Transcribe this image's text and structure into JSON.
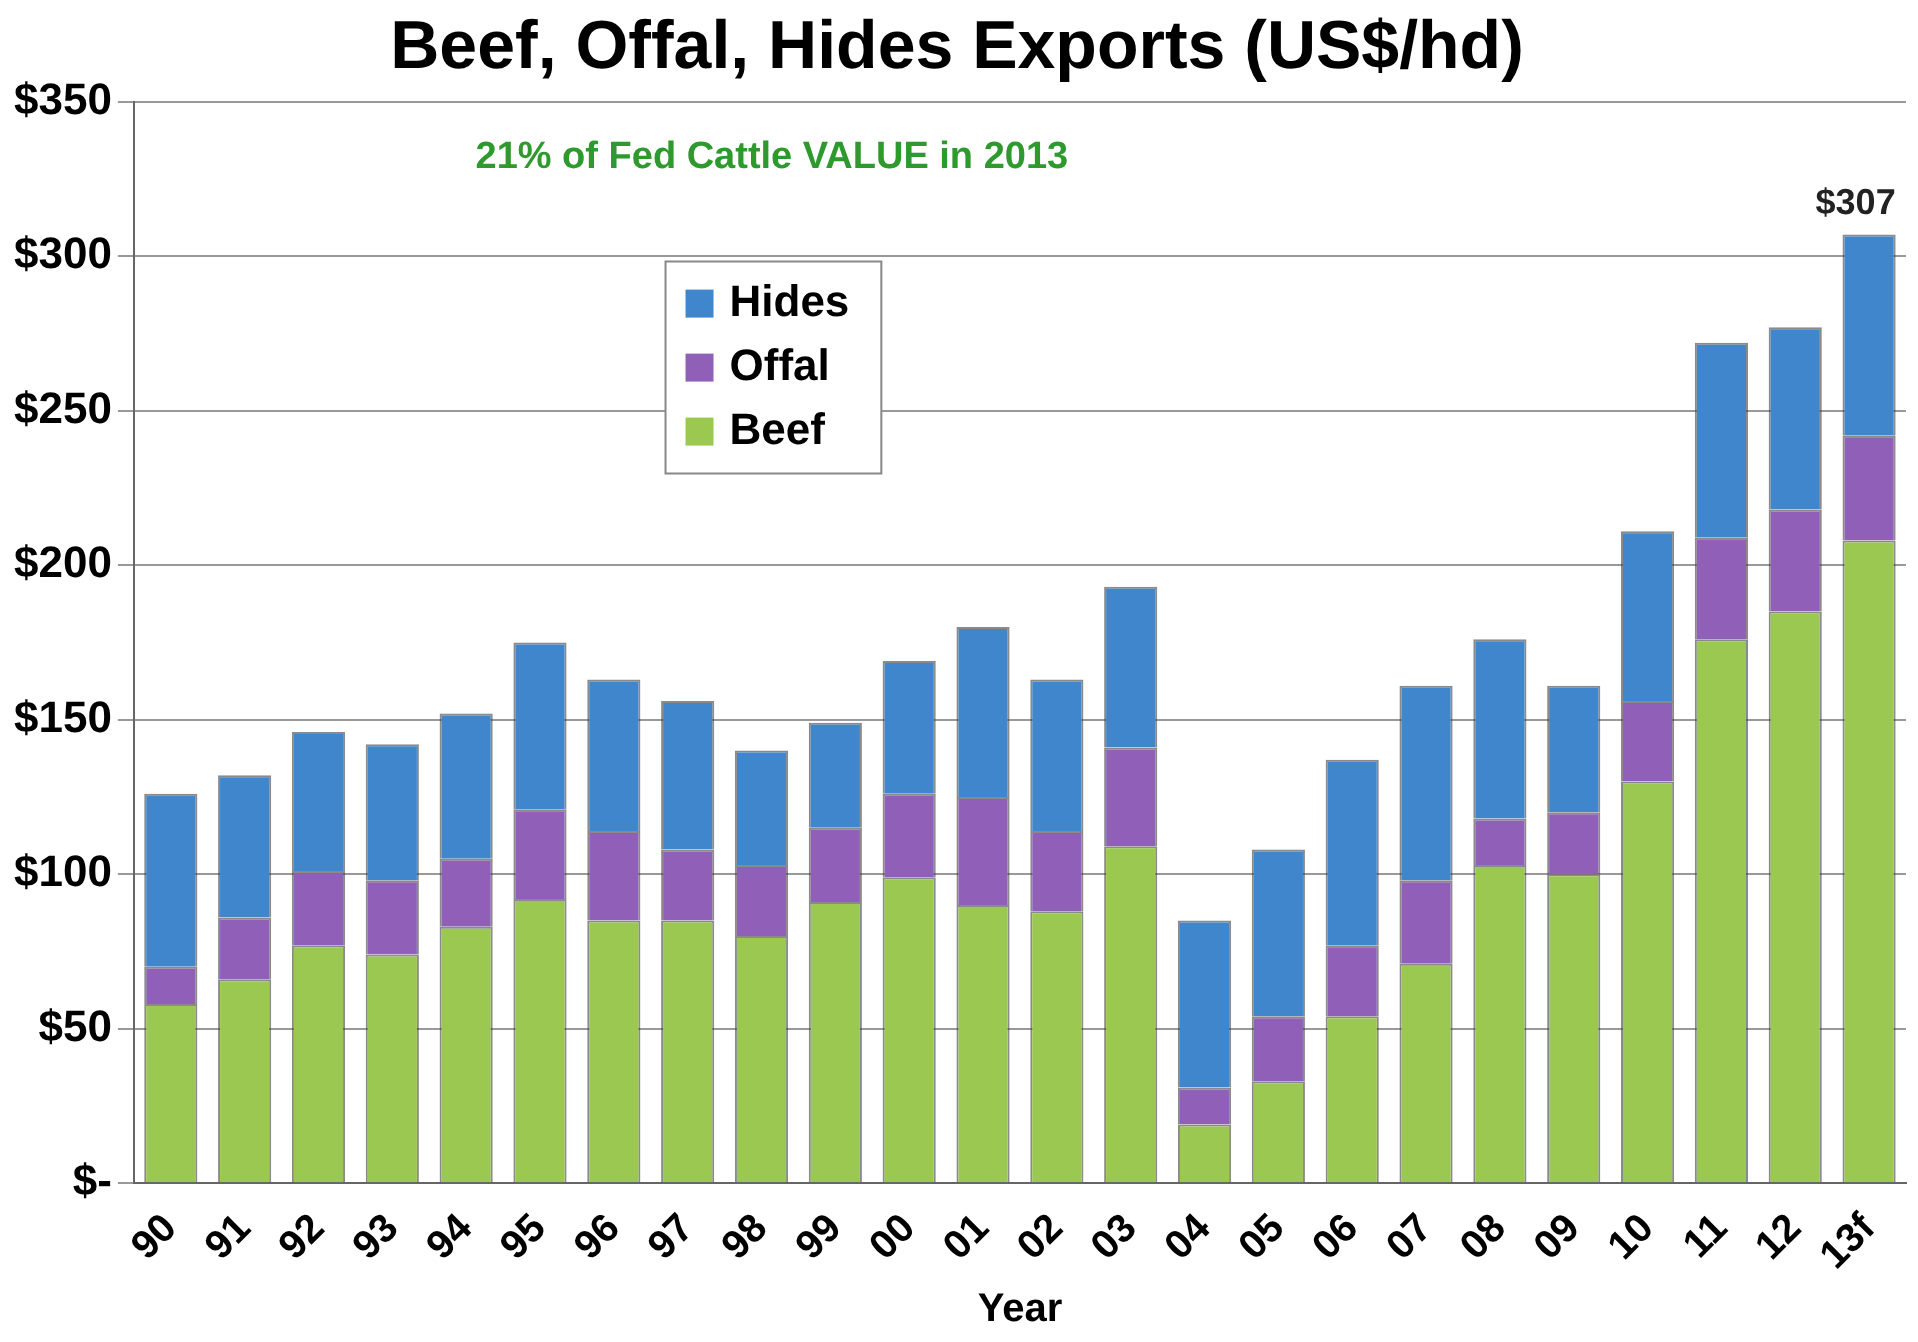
{
  "chart_data": {
    "type": "bar",
    "title": "Beef, Offal, Hides Exports (US$/hd)",
    "xlabel": "Year",
    "categories": [
      "90",
      "91",
      "92",
      "93",
      "94",
      "95",
      "96",
      "97",
      "98",
      "99",
      "00",
      "01",
      "02",
      "03",
      "04",
      "05",
      "06",
      "07",
      "08",
      "09",
      "10",
      "11",
      "12",
      "13f"
    ],
    "stacked": true,
    "series": [
      {
        "name": "Beef",
        "color": "#9bc850",
        "values": [
          58,
          66,
          77,
          74,
          83,
          92,
          85,
          85,
          80,
          91,
          99,
          90,
          88,
          109,
          19,
          33,
          54,
          71,
          103,
          100,
          130,
          176,
          185,
          208
        ]
      },
      {
        "name": "Offal",
        "color": "#9060b8",
        "values": [
          12,
          20,
          24,
          24,
          22,
          29,
          29,
          23,
          23,
          24,
          27,
          35,
          26,
          32,
          12,
          21,
          23,
          27,
          15,
          20,
          26,
          33,
          33,
          34
        ]
      },
      {
        "name": "Hides",
        "color": "#3f86cc",
        "values": [
          56,
          46,
          45,
          44,
          47,
          54,
          49,
          48,
          37,
          34,
          43,
          55,
          49,
          52,
          54,
          54,
          60,
          63,
          58,
          41,
          55,
          63,
          59,
          65
        ]
      }
    ],
    "ylim": [
      0,
      350
    ],
    "yticks": [
      {
        "value": 0,
        "label": "$-"
      },
      {
        "value": 50,
        "label": "$50"
      },
      {
        "value": 100,
        "label": "$100"
      },
      {
        "value": 150,
        "label": "$150"
      },
      {
        "value": 200,
        "label": "$200"
      },
      {
        "value": 250,
        "label": "$250"
      },
      {
        "value": 300,
        "label": "$300"
      },
      {
        "value": 350,
        "label": "$350"
      }
    ],
    "grid": "y",
    "legend": "top left",
    "annotations": [
      "21% of Fed Cattle VALUE in 2013",
      {
        "text": "$307",
        "x": "13f",
        "y": 307
      }
    ]
  }
}
